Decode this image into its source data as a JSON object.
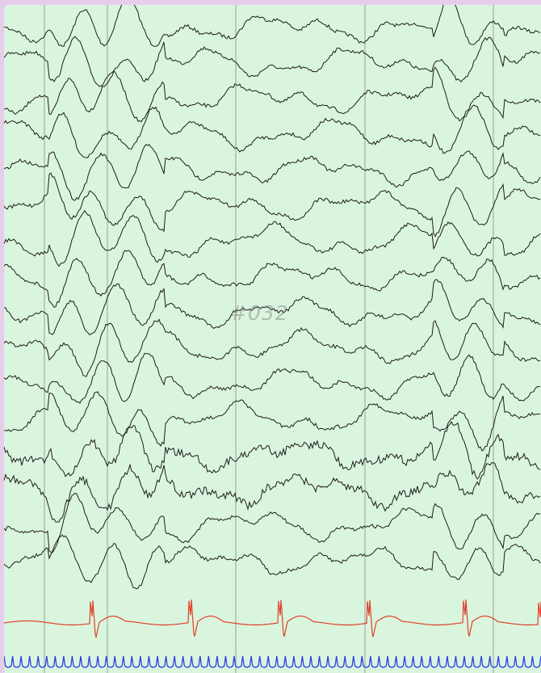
{
  "watermark": "#032",
  "colors": {
    "frame": "#e6cdee",
    "background": "#daf5de",
    "grid": "#8a9a8c",
    "eeg": "#1c1c1c",
    "ecg": "#e0402a",
    "timing": "#2f3fe6"
  },
  "eeg_channel_count": 16,
  "ecg_beat_count": 6,
  "timing_pulse_count": 63
}
